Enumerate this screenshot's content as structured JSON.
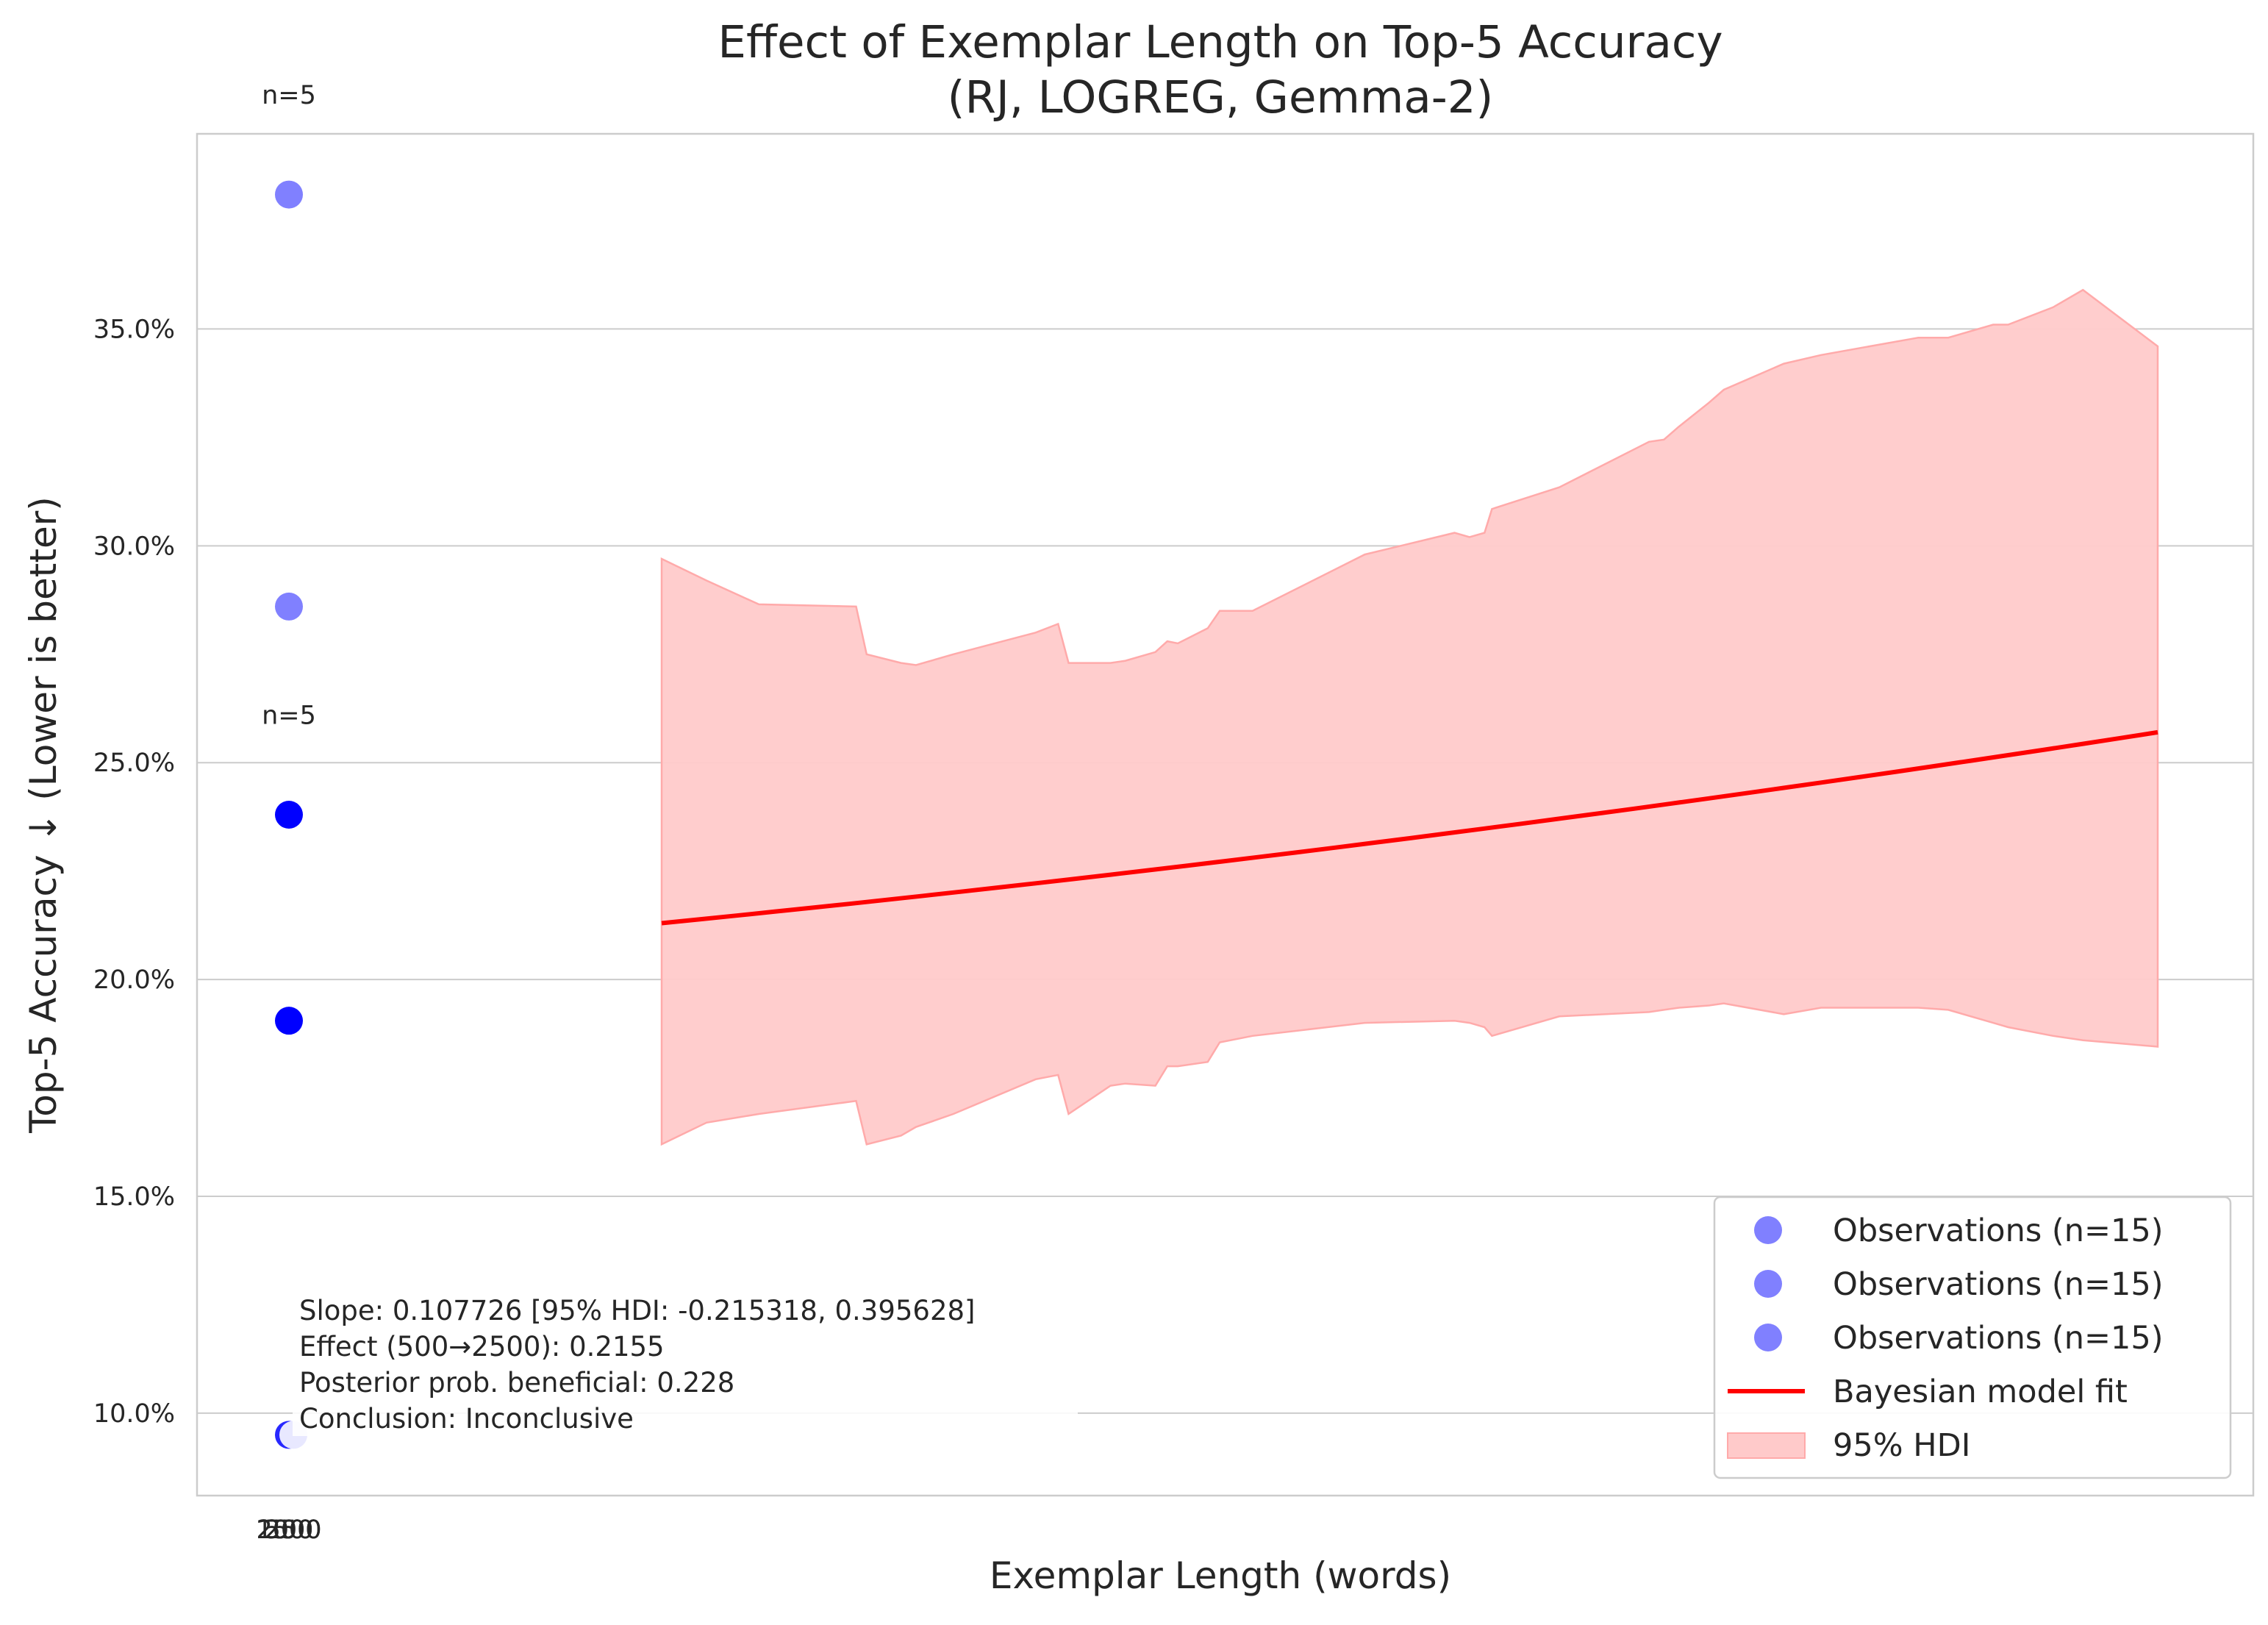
{
  "chart_data": {
    "type": "scatter",
    "title": "Effect of Exemplar Length on Top-5 Accuracy",
    "subtitle": "(RJ, LOGREG, Gemma-2)",
    "xlabel": "Exemplar Length (words)",
    "ylabel": "Top-5 Accuracy ↓ (Lower is better)",
    "xtick_labels": [
      "250",
      "500",
      "1000",
      "2500"
    ],
    "yticks": [
      10,
      15,
      20,
      25,
      30,
      35
    ],
    "ytick_labels": [
      "10.0%",
      "15.0%",
      "20.0%",
      "25.0%",
      "30.0%",
      "35.0%"
    ],
    "ylim": [
      8.1,
      39.5
    ],
    "grid": true,
    "legend_position": "lower right",
    "colors": {
      "obs_light": "#8080ff",
      "obs_dark": "#0000ff",
      "fit_line": "#ff0000",
      "hdi_fill": "#ffcaca",
      "hdi_edge": "#ffaaaa",
      "grid": "#cccccc",
      "axes": "#cccccc",
      "text": "#262626"
    },
    "observations": [
      {
        "series": 0,
        "y": 38.1,
        "color": "#8080ff"
      },
      {
        "series": 0,
        "y": 28.6,
        "color": "#8080ff"
      },
      {
        "series": 1,
        "y": 23.8,
        "color": "#0000ff"
      },
      {
        "series": 1,
        "y": 19.05,
        "color": "#0000ff"
      },
      {
        "series": 1,
        "y": 9.5,
        "color": "#2828ff"
      },
      {
        "series": 2,
        "y": 9.5,
        "color": "#e8e8ff"
      }
    ],
    "annotations": [
      {
        "text": "n=5",
        "y": 40.4
      },
      {
        "text": "n=5",
        "y": 26.1
      }
    ],
    "fit_line": {
      "name": "Bayesian model fit",
      "t_start": 0,
      "t_end": 1,
      "y_start": 21.3,
      "y_end": 25.7
    },
    "hdi": {
      "name": "95% HDI",
      "t": [
        0.0,
        0.03,
        0.065,
        0.13,
        0.137,
        0.16,
        0.17,
        0.195,
        0.25,
        0.265,
        0.272,
        0.3,
        0.31,
        0.33,
        0.338,
        0.345,
        0.365,
        0.373,
        0.395,
        0.47,
        0.53,
        0.54,
        0.55,
        0.555,
        0.6,
        0.66,
        0.67,
        0.68,
        0.7,
        0.71,
        0.75,
        0.775,
        0.84,
        0.86,
        0.89,
        0.9,
        0.93,
        0.95,
        1.0
      ],
      "upper": [
        29.7,
        29.2,
        28.65,
        28.6,
        27.5,
        27.3,
        27.25,
        27.5,
        28.0,
        28.2,
        27.3,
        27.3,
        27.35,
        27.55,
        27.8,
        27.75,
        28.1,
        28.5,
        28.5,
        29.8,
        30.3,
        30.2,
        30.3,
        30.85,
        31.35,
        32.4,
        32.45,
        32.75,
        33.3,
        33.6,
        34.2,
        34.4,
        34.8,
        34.8,
        35.1,
        35.1,
        35.5,
        35.9,
        34.6
      ],
      "lower": [
        16.2,
        16.7,
        16.9,
        17.2,
        16.2,
        16.4,
        16.6,
        16.9,
        17.7,
        17.8,
        16.9,
        17.55,
        17.6,
        17.55,
        18.0,
        18.0,
        18.1,
        18.55,
        18.7,
        19.0,
        19.05,
        19.0,
        18.9,
        18.7,
        19.15,
        19.25,
        19.3,
        19.35,
        19.4,
        19.45,
        19.2,
        19.35,
        19.35,
        19.3,
        19.0,
        18.9,
        18.7,
        18.6,
        18.45
      ]
    },
    "legend_entries": [
      {
        "label": "Observations (n=15)",
        "kind": "dot",
        "color": "#8080ff"
      },
      {
        "label": "Observations (n=15)",
        "kind": "dot",
        "color": "#8080ff"
      },
      {
        "label": "Observations (n=15)",
        "kind": "dot",
        "color": "#8080ff"
      },
      {
        "label": "Bayesian model fit",
        "kind": "line",
        "color": "#ff0000"
      },
      {
        "label": "95% HDI",
        "kind": "patch",
        "color": "#ffcaca"
      }
    ],
    "stats_lines": [
      "Slope: 0.107726 [95% HDI: -0.215318, 0.395628]",
      "Effect (500→2500): 0.2155",
      "Posterior prob. beneficial: 0.228",
      "Conclusion: Inconclusive"
    ]
  }
}
